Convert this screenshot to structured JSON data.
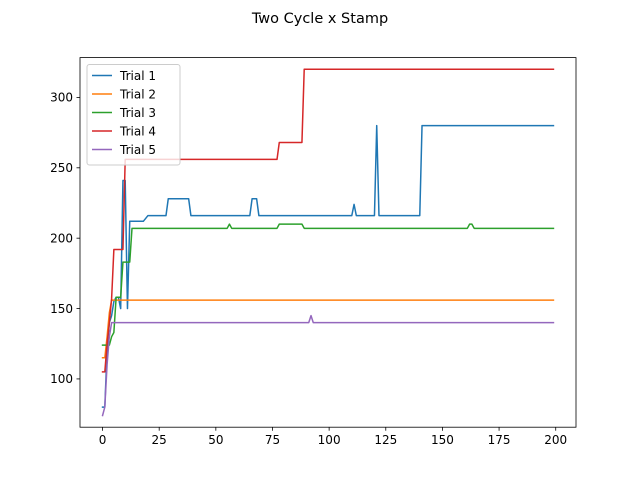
{
  "chart_data": {
    "type": "line",
    "title": "Two Cycle x Stamp",
    "xlabel": "",
    "ylabel": "",
    "xlim": [
      -9.95,
      208.95
    ],
    "ylim": [
      65.7,
      328.3
    ],
    "xticks": [
      0,
      25,
      50,
      75,
      100,
      125,
      150,
      175,
      200
    ],
    "yticks": [
      100,
      150,
      200,
      250,
      300
    ],
    "grid": false,
    "legend": "top-left",
    "series": [
      {
        "name": "Trial 1",
        "color": "#1f77b4",
        "points": [
          [
            0,
            80
          ],
          [
            1,
            80
          ],
          [
            2,
            120
          ],
          [
            3,
            140
          ],
          [
            4,
            145
          ],
          [
            5,
            155
          ],
          [
            6,
            158
          ],
          [
            7,
            158
          ],
          [
            8,
            150
          ],
          [
            9,
            241
          ],
          [
            10,
            241
          ],
          [
            11,
            150
          ],
          [
            12,
            212
          ],
          [
            18,
            212
          ],
          [
            20,
            216
          ],
          [
            28,
            216
          ],
          [
            29,
            228
          ],
          [
            38,
            228
          ],
          [
            39,
            216
          ],
          [
            65,
            216
          ],
          [
            66,
            228
          ],
          [
            68,
            228
          ],
          [
            69,
            216
          ],
          [
            110,
            216
          ],
          [
            111,
            224
          ],
          [
            112,
            216
          ],
          [
            120,
            216
          ],
          [
            121,
            280
          ],
          [
            122,
            216
          ],
          [
            140,
            216
          ],
          [
            141,
            280
          ],
          [
            199,
            280
          ]
        ]
      },
      {
        "name": "Trial 2",
        "color": "#ff7f0e",
        "points": [
          [
            0,
            115
          ],
          [
            1,
            115
          ],
          [
            2,
            130
          ],
          [
            3,
            147
          ],
          [
            4,
            156
          ],
          [
            199,
            156
          ]
        ]
      },
      {
        "name": "Trial 3",
        "color": "#2ca02c",
        "points": [
          [
            0,
            124
          ],
          [
            3,
            124
          ],
          [
            4,
            130
          ],
          [
            5,
            133
          ],
          [
            6,
            158
          ],
          [
            8,
            158
          ],
          [
            9,
            183
          ],
          [
            12,
            183
          ],
          [
            13,
            207
          ],
          [
            55,
            207
          ],
          [
            56,
            210
          ],
          [
            57,
            207
          ],
          [
            77,
            207
          ],
          [
            78,
            210
          ],
          [
            88,
            210
          ],
          [
            89,
            207
          ],
          [
            161,
            207
          ],
          [
            162,
            210
          ],
          [
            163,
            210
          ],
          [
            164,
            207
          ],
          [
            199,
            207
          ]
        ]
      },
      {
        "name": "Trial 4",
        "color": "#d62728",
        "points": [
          [
            0,
            105
          ],
          [
            1,
            105
          ],
          [
            2,
            125
          ],
          [
            3,
            140
          ],
          [
            4,
            157
          ],
          [
            5,
            192
          ],
          [
            9,
            192
          ],
          [
            10,
            256
          ],
          [
            77,
            256
          ],
          [
            78,
            268
          ],
          [
            88,
            268
          ],
          [
            89,
            320
          ],
          [
            199,
            320
          ]
        ]
      },
      {
        "name": "Trial 5",
        "color": "#9467bd",
        "points": [
          [
            0,
            74
          ],
          [
            1,
            80
          ],
          [
            2,
            110
          ],
          [
            3,
            130
          ],
          [
            4,
            140
          ],
          [
            91,
            140
          ],
          [
            92,
            145
          ],
          [
            93,
            140
          ],
          [
            199,
            140
          ]
        ]
      }
    ]
  }
}
